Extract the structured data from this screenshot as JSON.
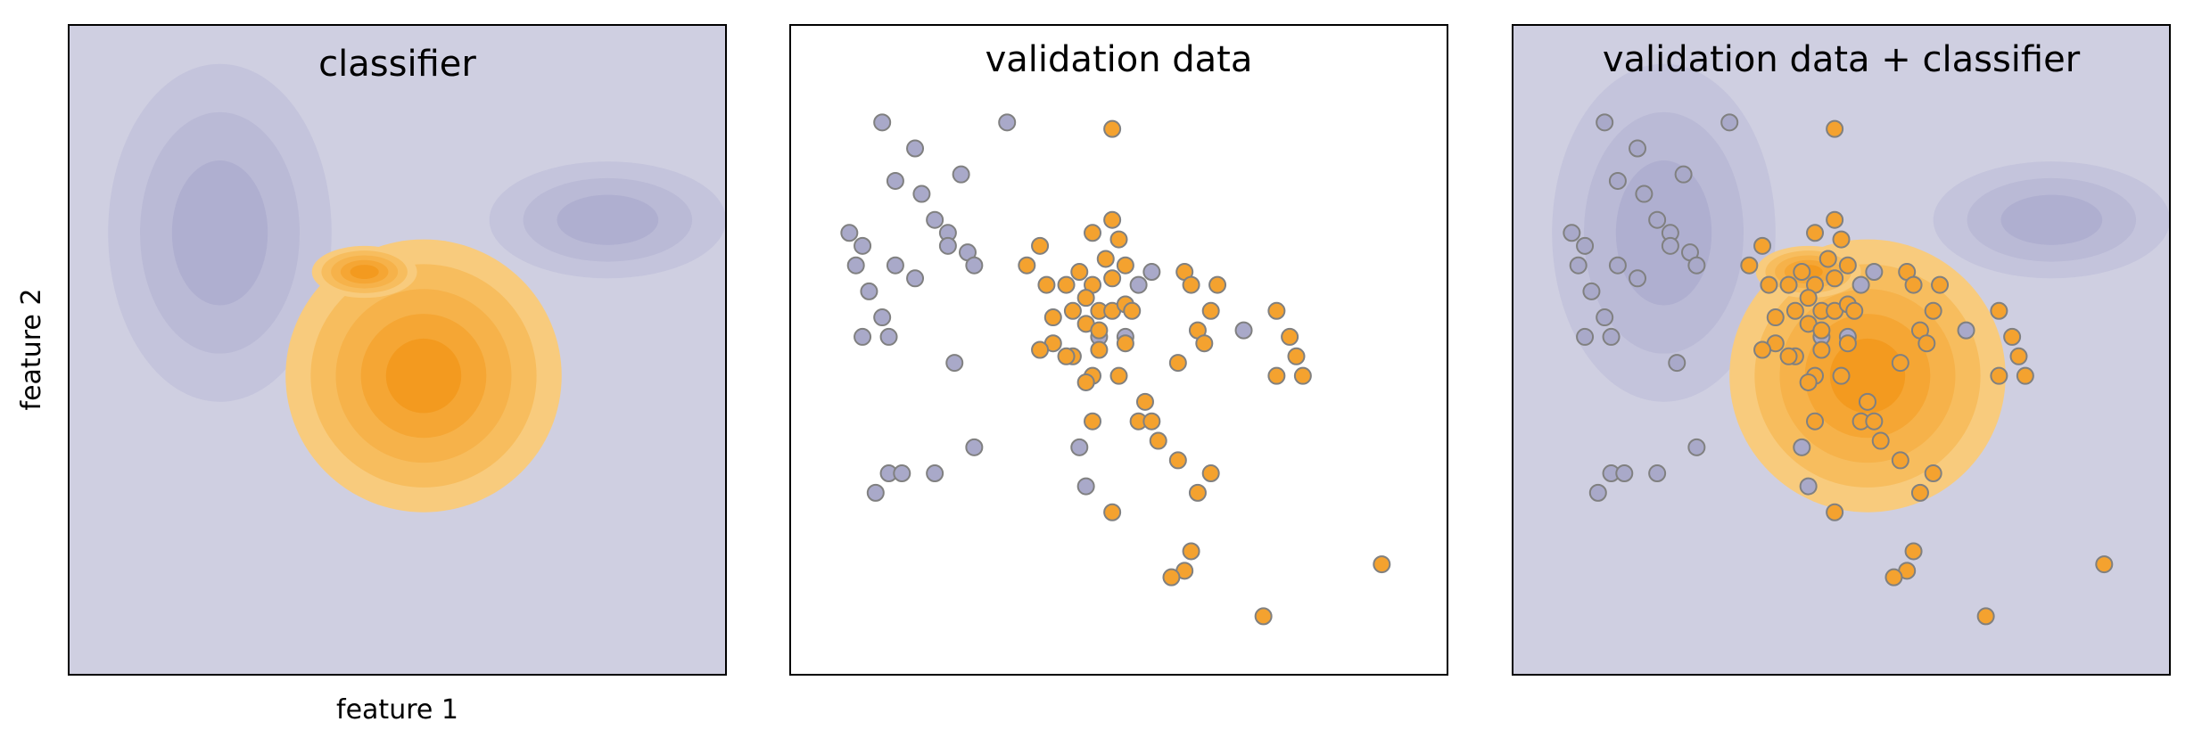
{
  "figure": {
    "ylabel": "feature 2",
    "xlabel": "feature 1"
  },
  "colors": {
    "class_a": "#a9a9c9",
    "class_b": "#f4a22f",
    "marker_edge": "#808080",
    "region_a": [
      "#cfcfe1",
      "#c4c4dc",
      "#babad6",
      "#afafd0"
    ],
    "region_b": [
      "#f9d9a0",
      "#f8cb7d",
      "#f7bd5e",
      "#f6b24a",
      "#f5a634",
      "#f39a1f"
    ]
  },
  "panels": [
    {
      "title": "classifier",
      "show_points": false,
      "show_regions": true
    },
    {
      "title": "validation data",
      "show_points": true,
      "show_regions": false
    },
    {
      "title": "validation data + classifier",
      "show_points": true,
      "show_regions": true
    }
  ],
  "chart_data": {
    "type": "scatter",
    "xlabel": "feature 1",
    "ylabel": "feature 2",
    "xlim": [
      0,
      10
    ],
    "ylim": [
      0,
      10
    ],
    "ticks": "none",
    "series": [
      {
        "class": "a",
        "points": [
          [
            1.4,
            8.5
          ],
          [
            1.9,
            8.1
          ],
          [
            1.6,
            7.6
          ],
          [
            2.0,
            7.4
          ],
          [
            2.2,
            7.0
          ],
          [
            2.6,
            7.7
          ],
          [
            2.4,
            6.8
          ],
          [
            0.9,
            6.8
          ],
          [
            1.1,
            6.6
          ],
          [
            1.0,
            6.3
          ],
          [
            1.6,
            6.3
          ],
          [
            1.9,
            6.1
          ],
          [
            1.2,
            5.9
          ],
          [
            1.4,
            5.5
          ],
          [
            1.1,
            5.2
          ],
          [
            1.5,
            5.2
          ],
          [
            2.4,
            6.6
          ],
          [
            2.7,
            6.5
          ],
          [
            2.8,
            6.3
          ],
          [
            3.3,
            8.5
          ],
          [
            5.5,
            6.2
          ],
          [
            5.3,
            6.0
          ],
          [
            4.7,
            5.2
          ],
          [
            5.1,
            5.2
          ],
          [
            6.9,
            5.3
          ],
          [
            2.5,
            4.8
          ],
          [
            2.8,
            3.5
          ],
          [
            1.5,
            3.1
          ],
          [
            1.7,
            3.1
          ],
          [
            1.3,
            2.8
          ],
          [
            2.2,
            3.1
          ],
          [
            4.4,
            3.5
          ],
          [
            4.5,
            2.9
          ]
        ]
      },
      {
        "class": "b",
        "points": [
          [
            4.9,
            8.4
          ],
          [
            4.9,
            7.0
          ],
          [
            4.6,
            6.8
          ],
          [
            5.0,
            6.7
          ],
          [
            4.8,
            6.4
          ],
          [
            5.1,
            6.3
          ],
          [
            3.8,
            6.6
          ],
          [
            3.6,
            6.3
          ],
          [
            4.4,
            6.2
          ],
          [
            4.6,
            6.0
          ],
          [
            4.9,
            6.1
          ],
          [
            4.2,
            6.0
          ],
          [
            4.5,
            5.8
          ],
          [
            4.3,
            5.6
          ],
          [
            4.0,
            5.5
          ],
          [
            4.7,
            5.6
          ],
          [
            4.9,
            5.6
          ],
          [
            5.1,
            5.7
          ],
          [
            3.9,
            6.0
          ],
          [
            4.5,
            5.4
          ],
          [
            4.7,
            5.3
          ],
          [
            4.3,
            4.9
          ],
          [
            4.2,
            4.9
          ],
          [
            4.7,
            5.0
          ],
          [
            5.2,
            5.6
          ],
          [
            5.1,
            5.1
          ],
          [
            5.0,
            4.6
          ],
          [
            4.6,
            4.6
          ],
          [
            4.0,
            5.1
          ],
          [
            3.8,
            5.0
          ],
          [
            4.5,
            4.5
          ],
          [
            6.0,
            6.2
          ],
          [
            6.1,
            6.0
          ],
          [
            6.5,
            6.0
          ],
          [
            6.4,
            5.6
          ],
          [
            6.2,
            5.3
          ],
          [
            6.3,
            5.1
          ],
          [
            7.4,
            5.6
          ],
          [
            7.6,
            5.2
          ],
          [
            7.7,
            4.9
          ],
          [
            7.4,
            4.6
          ],
          [
            7.8,
            4.6
          ],
          [
            5.9,
            4.8
          ],
          [
            5.4,
            4.2
          ],
          [
            5.3,
            3.9
          ],
          [
            4.6,
            3.9
          ],
          [
            5.6,
            3.6
          ],
          [
            5.5,
            3.9
          ],
          [
            5.9,
            3.3
          ],
          [
            6.4,
            3.1
          ],
          [
            6.2,
            2.8
          ],
          [
            4.9,
            2.5
          ],
          [
            6.1,
            1.9
          ],
          [
            6.0,
            1.6
          ],
          [
            5.8,
            1.5
          ],
          [
            9.0,
            1.7
          ],
          [
            7.2,
            0.9
          ]
        ]
      }
    ],
    "decision_regions": [
      {
        "class": "a",
        "level": 3,
        "center": [
          2.3,
          6.8
        ],
        "radius": [
          1.7,
          2.6
        ]
      },
      {
        "class": "a",
        "level": 3,
        "center": [
          8.2,
          7.0
        ],
        "radius": [
          1.8,
          0.9
        ]
      },
      {
        "class": "b",
        "level": 5,
        "center": [
          5.4,
          4.6
        ],
        "radius": [
          2.1,
          2.1
        ]
      },
      {
        "class": "b",
        "level": 5,
        "center": [
          4.5,
          6.2
        ],
        "radius": [
          0.8,
          0.4
        ]
      }
    ]
  }
}
